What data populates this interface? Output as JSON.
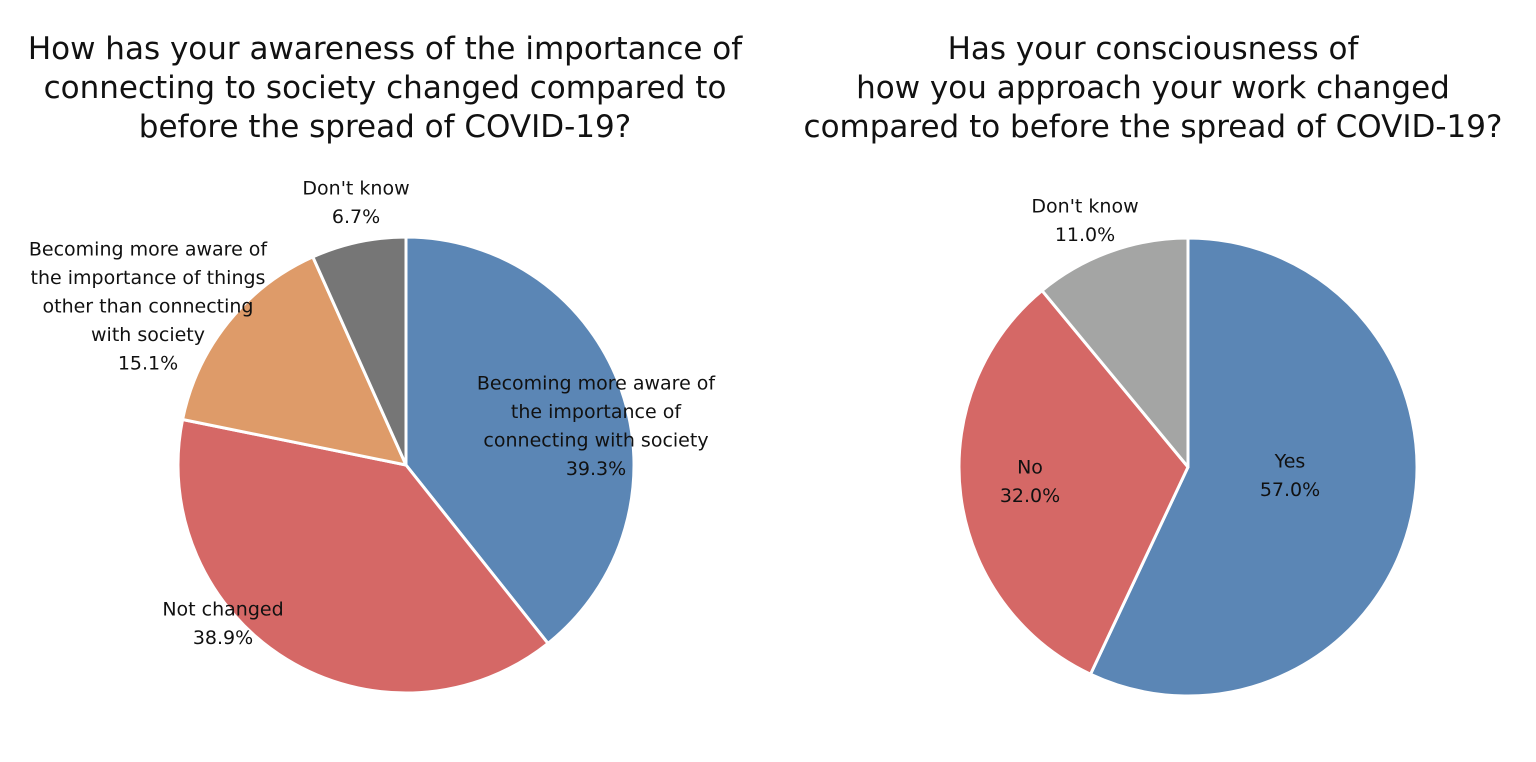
{
  "colors": {
    "blue": "#5b86b5",
    "red": "#d56866",
    "orange": "#de9b69",
    "dark_gray": "#767676",
    "light_gray": "#a4a5a4",
    "slice_border": "#ffffff"
  },
  "chart_data": [
    {
      "type": "pie",
      "title_lines": [
        "How has your awareness of the importance of",
        "connecting to society changed compared to",
        "before the spread of COVID-19?"
      ],
      "start_angle_deg": 0,
      "direction": "clockwise",
      "slices": [
        {
          "label_lines": [
            "Becoming more aware of",
            "the importance of",
            "connecting with society"
          ],
          "value": 39.3,
          "value_label": "39.3%",
          "color": "#5b86b5"
        },
        {
          "label_lines": [
            "Not changed"
          ],
          "value": 38.9,
          "value_label": "38.9%",
          "color": "#d56866"
        },
        {
          "label_lines": [
            "Becoming more aware of",
            "the importance of things",
            "other than connecting",
            "with society"
          ],
          "value": 15.1,
          "value_label": "15.1%",
          "color": "#de9b69"
        },
        {
          "label_lines": [
            "Don't know"
          ],
          "value": 6.7,
          "value_label": "6.7%",
          "color": "#767676"
        }
      ]
    },
    {
      "type": "pie",
      "title_lines": [
        "Has your consciousness of",
        "how you approach your work changed",
        "compared to before the spread of COVID-19?"
      ],
      "start_angle_deg": 0,
      "direction": "clockwise",
      "slices": [
        {
          "label_lines": [
            "Yes"
          ],
          "value": 57.0,
          "value_label": "57.0%",
          "color": "#5b86b5"
        },
        {
          "label_lines": [
            "No"
          ],
          "value": 32.0,
          "value_label": "32.0%",
          "color": "#d56866"
        },
        {
          "label_lines": [
            "Don't know"
          ],
          "value": 11.0,
          "value_label": "11.0%",
          "color": "#a4a5a4"
        }
      ]
    }
  ]
}
